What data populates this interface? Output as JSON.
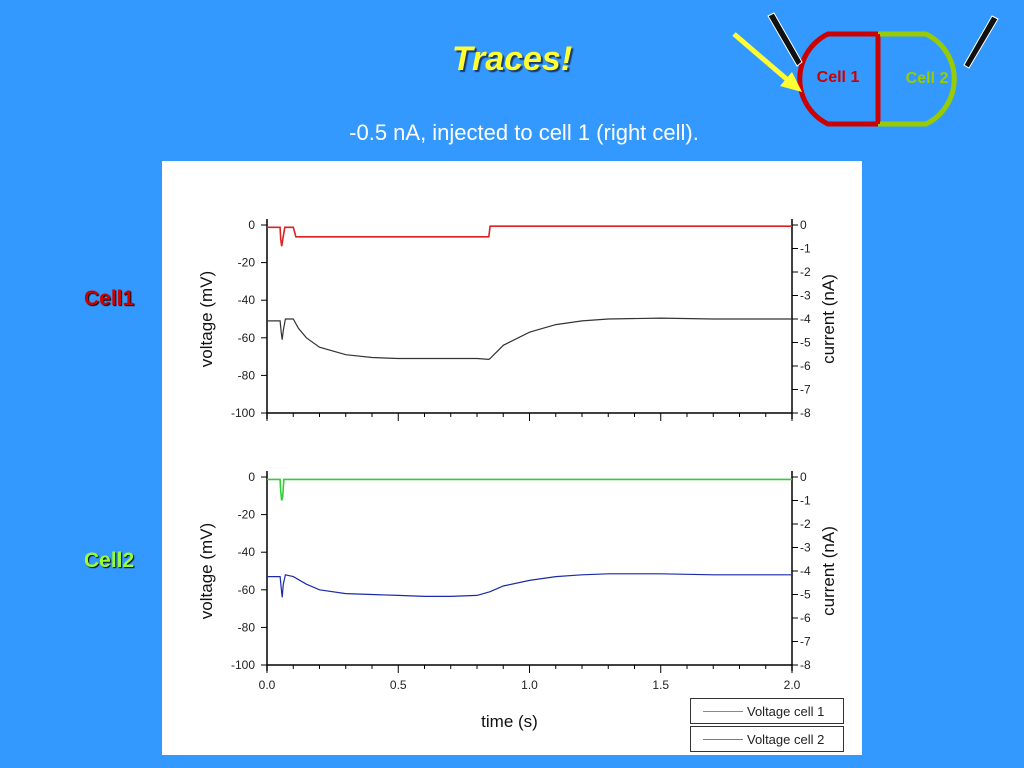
{
  "title": "Traces!",
  "subtitle": "-0.5 nA, injected to cell 1 (right cell).",
  "side_labels": {
    "cell1": "Cell1",
    "cell2": "Cell2"
  },
  "schematic": {
    "cell1_label": "Cell 1",
    "cell2_label": "Cell 2"
  },
  "colors": {
    "background": "#3399ff",
    "title": "#ffff33",
    "cell1": "#cc0000",
    "cell2": "#99cc00",
    "current1": "#dd2222",
    "voltage1": "#333333",
    "current2": "#33cc33",
    "voltage2": "#1a2aa8"
  },
  "chart_data": [
    {
      "type": "line",
      "title": "",
      "xlabel": "",
      "ylabel": "voltage (mV)",
      "y2label": "current (nA)",
      "xlim": [
        0,
        2.0
      ],
      "ylim": [
        -100,
        0
      ],
      "y2lim": [
        -8,
        0
      ],
      "yticks": [
        "0",
        "-20",
        "-40",
        "-60",
        "-80",
        "-100"
      ],
      "y2ticks": [
        "0",
        "-1",
        "-2",
        "-3",
        "-4",
        "-5",
        "-6",
        "-7",
        "-8"
      ],
      "series": [
        {
          "axis": "y2",
          "color": "#dd2222",
          "x": [
            0.0,
            0.05,
            0.052,
            0.056,
            0.06,
            0.068,
            0.07,
            0.1,
            0.11,
            0.845,
            0.85,
            2.0
          ],
          "y": [
            -0.1,
            -0.1,
            -0.6,
            -0.9,
            -0.6,
            -0.1,
            -0.1,
            -0.1,
            -0.5,
            -0.5,
            -0.05,
            -0.05
          ]
        },
        {
          "axis": "y",
          "color": "#333333",
          "x": [
            0.0,
            0.05,
            0.054,
            0.058,
            0.062,
            0.07,
            0.1,
            0.12,
            0.15,
            0.2,
            0.3,
            0.4,
            0.5,
            0.6,
            0.7,
            0.8,
            0.845,
            0.85,
            0.9,
            1.0,
            1.1,
            1.2,
            1.3,
            1.5,
            1.7,
            2.0
          ],
          "y": [
            -51,
            -51,
            -57,
            -61,
            -56,
            -50,
            -50,
            -55,
            -60,
            -65,
            -69,
            -70.5,
            -71,
            -71,
            -71,
            -71,
            -71.5,
            -71,
            -64,
            -57,
            -53,
            -51,
            -50,
            -49.5,
            -50,
            -50
          ]
        }
      ]
    },
    {
      "type": "line",
      "title": "",
      "xlabel": "time (s)",
      "ylabel": "voltage (mV)",
      "y2label": "current (nA)",
      "xlim": [
        0,
        2.0
      ],
      "ylim": [
        -100,
        0
      ],
      "y2lim": [
        -8,
        0
      ],
      "xticks": [
        "0.0",
        "0.5",
        "1.0",
        "1.5",
        "2.0"
      ],
      "yticks": [
        "0",
        "-20",
        "-40",
        "-60",
        "-80",
        "-100"
      ],
      "y2ticks": [
        "0",
        "-1",
        "-2",
        "-3",
        "-4",
        "-5",
        "-6",
        "-7",
        "-8"
      ],
      "series": [
        {
          "axis": "y2",
          "color": "#33cc33",
          "x": [
            0.0,
            0.05,
            0.052,
            0.056,
            0.06,
            0.064,
            0.066,
            2.0
          ],
          "y": [
            -0.1,
            -0.1,
            -0.6,
            -1.0,
            -0.8,
            -0.1,
            -0.1,
            -0.1
          ]
        },
        {
          "axis": "y",
          "color": "#1a2aa8",
          "x": [
            0.0,
            0.05,
            0.055,
            0.058,
            0.062,
            0.07,
            0.1,
            0.15,
            0.2,
            0.3,
            0.4,
            0.5,
            0.6,
            0.7,
            0.8,
            0.85,
            0.9,
            1.0,
            1.1,
            1.2,
            1.3,
            1.5,
            1.7,
            2.0
          ],
          "y": [
            -53,
            -53,
            -60,
            -64,
            -57,
            -52,
            -53,
            -57,
            -60,
            -62,
            -62.5,
            -63,
            -63.5,
            -63.5,
            -63,
            -61,
            -58,
            -55,
            -53,
            -52,
            -51.5,
            -51.5,
            -52,
            -52
          ]
        }
      ],
      "legend": {
        "position": "bottom-right",
        "entries": [
          "Voltage cell 1",
          "Voltage cell 2"
        ]
      }
    }
  ]
}
